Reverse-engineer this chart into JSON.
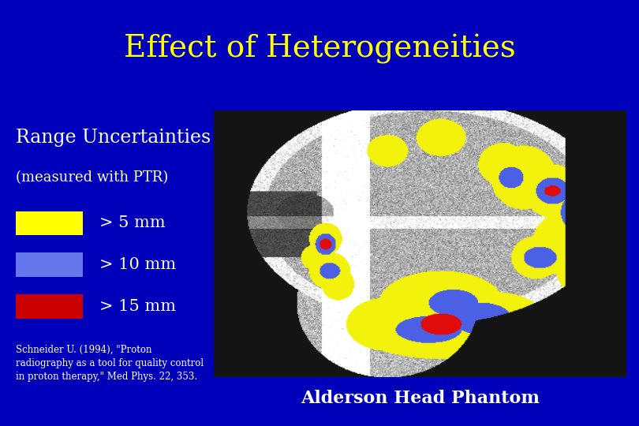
{
  "title": "Effect of Heterogeneities",
  "title_color": "#FFFF00",
  "title_fontsize": 28,
  "background_color": "#0000BB",
  "body_bg": "#0000AA",
  "separator_color": "#4444CC",
  "left_text_color": "#FFFFFF",
  "legend_title1": "Range Uncertainties",
  "legend_title2": "(measured with PTR)",
  "legend_items": [
    {
      "label": "> 5 mm",
      "color": "#FFFF00"
    },
    {
      "label": "> 10 mm",
      "color": "#6677EE"
    },
    {
      "label": "> 15 mm",
      "color": "#CC0000"
    }
  ],
  "legend_label_fontsize": 15,
  "legend_title_fontsize": 17,
  "caption": "Alderson Head Phantom",
  "caption_color": "#FFFFFF",
  "caption_fontsize": 16,
  "reference_text": "Schneider U. (1994), \"Proton\nradiography as a tool for quality control\nin proton therapy,\" Med Phys. 22, 353.",
  "reference_fontsize": 8.5
}
